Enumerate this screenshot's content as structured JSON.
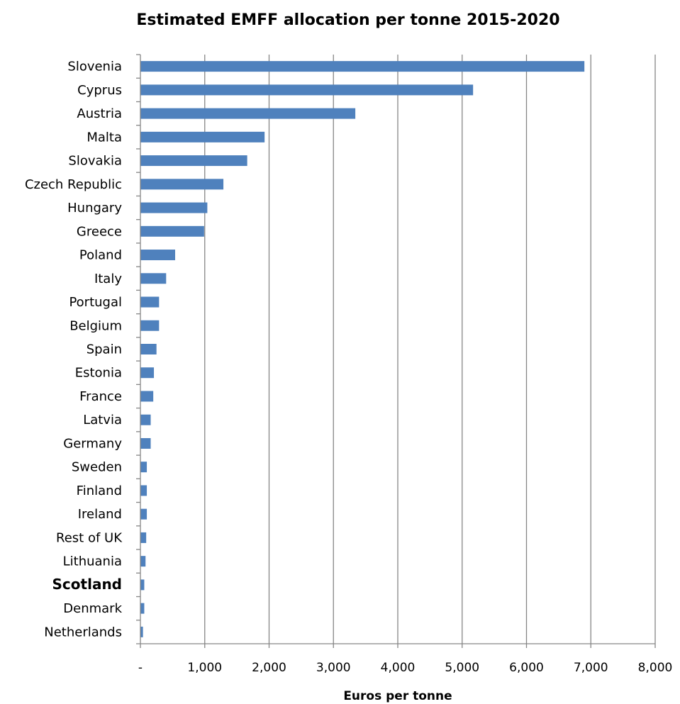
{
  "chart_data": {
    "type": "bar",
    "orientation": "horizontal",
    "title": "Estimated EMFF allocation per tonne 2015-2020",
    "xlabel": "Euros per tonne",
    "ylabel": "",
    "xlim": [
      0,
      8000
    ],
    "x_tick_values": [
      0,
      1000,
      2000,
      3000,
      4000,
      5000,
      6000,
      7000,
      8000
    ],
    "x_tick_labels": [
      "-",
      "1,000",
      "2,000",
      "3,000",
      "4,000",
      "5,000",
      "6,000",
      "7,000",
      "8,000"
    ],
    "grid": "vertical",
    "bar_color": "#4f81bd",
    "highlighted_category": "Scotland",
    "categories": [
      "Slovenia",
      "Cyprus",
      "Austria",
      "Malta",
      "Slovakia",
      "Czech Republic",
      "Hungary",
      "Greece",
      "Poland",
      "Italy",
      "Portugal",
      "Belgium",
      "Spain",
      "Estonia",
      "France",
      "Latvia",
      "Germany",
      "Sweden",
      "Finland",
      "Ireland",
      "Rest of UK",
      "Lithuania",
      "Scotland",
      "Denmark",
      "Netherlands"
    ],
    "values": [
      6900,
      5170,
      3340,
      1930,
      1660,
      1290,
      1040,
      990,
      540,
      400,
      290,
      290,
      250,
      210,
      200,
      160,
      160,
      100,
      100,
      100,
      90,
      80,
      60,
      60,
      40
    ]
  }
}
